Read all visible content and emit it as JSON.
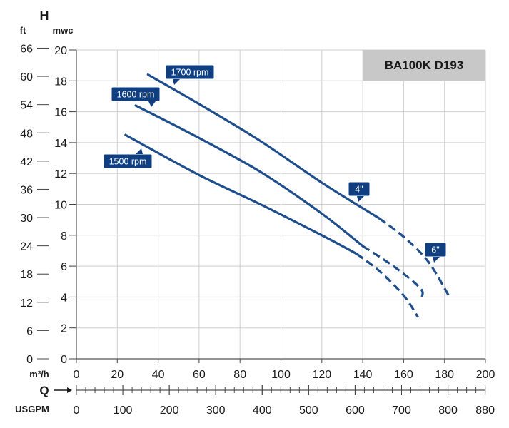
{
  "chart_data": {
    "type": "line",
    "title": "BA100K D193",
    "y_axis_symbol": "H",
    "y_units": {
      "left": "ft",
      "right": "mwc"
    },
    "y_mwc_ticks": [
      0,
      2,
      4,
      6,
      8,
      10,
      12,
      14,
      16,
      18,
      20
    ],
    "y_ft_ticks": [
      0,
      6,
      12,
      18,
      24,
      30,
      36,
      42,
      48,
      54,
      60,
      66
    ],
    "ylim": [
      0,
      20
    ],
    "x_axis_symbol": "Q",
    "x_units": {
      "primary": "m³/h",
      "secondary": "USGPM"
    },
    "x_m3h_ticks": [
      0,
      20,
      40,
      60,
      80,
      100,
      120,
      140,
      160,
      180,
      200
    ],
    "x_usgpm_ticks": [
      0,
      100,
      200,
      300,
      400,
      500,
      600,
      700,
      800,
      880
    ],
    "xlim": [
      0,
      200
    ],
    "grid": true,
    "series": [
      {
        "name": "1700 rpm",
        "solid": [
          [
            35,
            18.4
          ],
          [
            60,
            16.5
          ],
          [
            90,
            14.1
          ],
          [
            120,
            11.4
          ],
          [
            148,
            9.1
          ]
        ],
        "dashed": [
          [
            148,
            9.1
          ],
          [
            160,
            7.9
          ],
          [
            172,
            6.3
          ],
          [
            182,
            4.1
          ]
        ]
      },
      {
        "name": "1600 rpm",
        "solid": [
          [
            29,
            16.4
          ],
          [
            60,
            14.3
          ],
          [
            90,
            12.1
          ],
          [
            120,
            9.4
          ],
          [
            140,
            7.3
          ]
        ],
        "dashed": [
          [
            140,
            7.3
          ],
          [
            155,
            6.0
          ],
          [
            168,
            4.6
          ],
          [
            169,
            4.0
          ]
        ]
      },
      {
        "name": "1500 rpm",
        "solid": [
          [
            24,
            14.5
          ],
          [
            60,
            11.9
          ],
          [
            90,
            10.0
          ],
          [
            120,
            8.0
          ],
          [
            137,
            6.8
          ]
        ],
        "dashed": [
          [
            137,
            6.8
          ],
          [
            148,
            5.7
          ],
          [
            160,
            4.1
          ],
          [
            167,
            2.7
          ]
        ]
      }
    ],
    "annotations": [
      {
        "text": "4\"",
        "points_to": [
          148,
          9.4
        ]
      },
      {
        "text": "6\"",
        "points_to": [
          175,
          6.3
        ]
      }
    ],
    "colors": {
      "curve": "#1f4e8c",
      "label_bg": "#0f3f80",
      "title_box": "#c8c8c8",
      "grid": "#cfcfcf"
    }
  }
}
